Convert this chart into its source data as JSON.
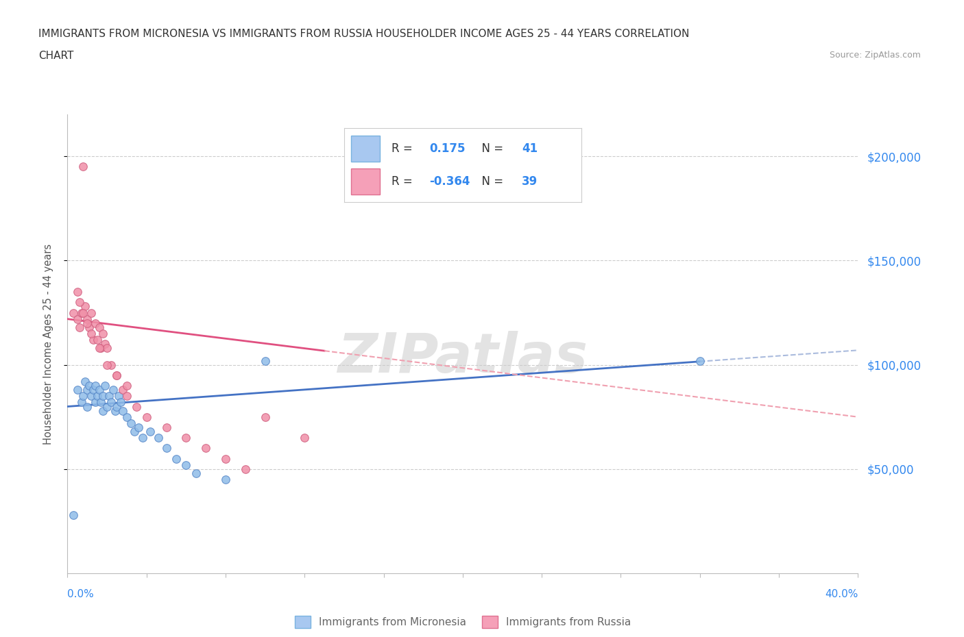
{
  "title_line1": "IMMIGRANTS FROM MICRONESIA VS IMMIGRANTS FROM RUSSIA HOUSEHOLDER INCOME AGES 25 - 44 YEARS CORRELATION",
  "title_line2": "CHART",
  "source_text": "Source: ZipAtlas.com",
  "ylabel": "Householder Income Ages 25 - 44 years",
  "watermark": "ZIPatlas",
  "legend_entries": [
    {
      "label": "Immigrants from Micronesia",
      "color_fill": "#a8c8f0",
      "color_edge": "#7ab3e0",
      "R": "0.175",
      "N": "41"
    },
    {
      "label": "Immigrants from Russia",
      "color_fill": "#f5a0b8",
      "color_edge": "#e07090",
      "R": "-0.364",
      "N": "39"
    }
  ],
  "xmin": 0.0,
  "xmax": 0.4,
  "ymin": 0,
  "ymax": 220000,
  "yticks": [
    50000,
    100000,
    150000,
    200000
  ],
  "ytick_labels": [
    "$50,000",
    "$100,000",
    "$150,000",
    "$200,000"
  ],
  "xtick_count": 11,
  "grid_color": "#cccccc",
  "micronesia_color": "#90bce8",
  "micronesia_edge": "#5888c8",
  "russia_color": "#f090a8",
  "russia_edge": "#d06080",
  "micronesia_x": [
    0.005,
    0.007,
    0.008,
    0.009,
    0.01,
    0.01,
    0.011,
    0.012,
    0.013,
    0.014,
    0.014,
    0.015,
    0.016,
    0.017,
    0.018,
    0.018,
    0.019,
    0.02,
    0.021,
    0.022,
    0.023,
    0.024,
    0.025,
    0.026,
    0.027,
    0.028,
    0.03,
    0.032,
    0.034,
    0.036,
    0.038,
    0.042,
    0.046,
    0.05,
    0.055,
    0.06,
    0.065,
    0.08,
    0.1,
    0.32,
    0.003
  ],
  "micronesia_y": [
    88000,
    82000,
    85000,
    92000,
    88000,
    80000,
    90000,
    85000,
    88000,
    90000,
    82000,
    85000,
    88000,
    82000,
    78000,
    85000,
    90000,
    80000,
    85000,
    82000,
    88000,
    78000,
    80000,
    85000,
    82000,
    78000,
    75000,
    72000,
    68000,
    70000,
    65000,
    68000,
    65000,
    60000,
    55000,
    52000,
    48000,
    45000,
    102000,
    102000,
    28000
  ],
  "russia_x": [
    0.003,
    0.005,
    0.006,
    0.007,
    0.008,
    0.009,
    0.01,
    0.011,
    0.012,
    0.013,
    0.014,
    0.015,
    0.016,
    0.017,
    0.018,
    0.019,
    0.02,
    0.022,
    0.025,
    0.028,
    0.03,
    0.035,
    0.04,
    0.05,
    0.06,
    0.07,
    0.08,
    0.09,
    0.1,
    0.12,
    0.006,
    0.008,
    0.012,
    0.016,
    0.02,
    0.025,
    0.03,
    0.005,
    0.01
  ],
  "russia_y": [
    125000,
    122000,
    118000,
    125000,
    195000,
    128000,
    122000,
    118000,
    125000,
    112000,
    120000,
    112000,
    118000,
    108000,
    115000,
    110000,
    108000,
    100000,
    95000,
    88000,
    85000,
    80000,
    75000,
    70000,
    65000,
    60000,
    55000,
    50000,
    75000,
    65000,
    130000,
    125000,
    115000,
    108000,
    100000,
    95000,
    90000,
    135000,
    120000
  ],
  "blue_trend_x0": 0.0,
  "blue_trend_y0": 80000,
  "blue_trend_x1": 0.4,
  "blue_trend_y1": 107000,
  "blue_solid_end": 0.32,
  "pink_trend_x0": 0.0,
  "pink_trend_y0": 122000,
  "pink_trend_x1": 0.4,
  "pink_trend_y1": 75000,
  "pink_solid_end": 0.13,
  "trend_blue_color": "#4472c4",
  "trend_pink_color": "#e05080",
  "trend_dash_color_blue": "#aabbdd",
  "trend_dash_color_pink": "#f0a0b0"
}
